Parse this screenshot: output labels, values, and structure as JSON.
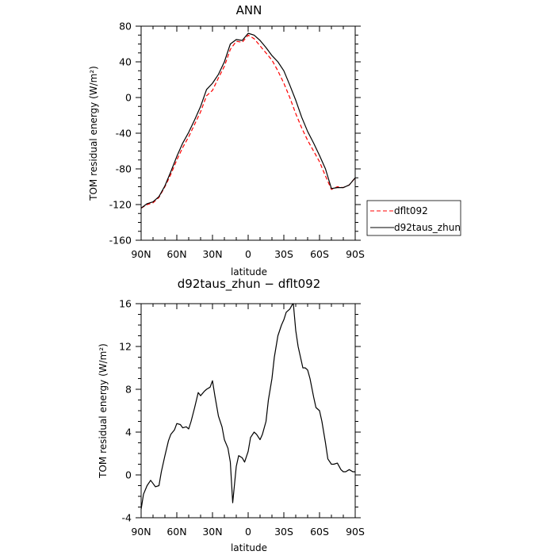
{
  "chart_data": [
    {
      "type": "line",
      "title": "ANN",
      "xlabel": "latitude",
      "ylabel": "TOM residual energy (W/m²)",
      "xlim": [
        90,
        -90
      ],
      "ylim": [
        -160,
        80
      ],
      "xticks": [
        90,
        60,
        30,
        0,
        -30,
        -60,
        -90
      ],
      "xtick_labels": [
        "90N",
        "60N",
        "30N",
        "0",
        "30S",
        "60S",
        "90S"
      ],
      "yticks": [
        -160,
        -120,
        -80,
        -40,
        0,
        40,
        80
      ],
      "ytick_labels": [
        "-160",
        "-120",
        "-80",
        "-40",
        "0",
        "40",
        "80"
      ],
      "legend_position": "right",
      "series": [
        {
          "name": "dflt092",
          "color": "#ff0000",
          "dash": "dashed",
          "x": [
            90,
            85,
            80,
            75,
            70,
            65,
            60,
            55,
            50,
            45,
            40,
            35,
            30,
            25,
            20,
            15,
            10,
            5,
            0,
            -5,
            -10,
            -15,
            -20,
            -25,
            -30,
            -35,
            -40,
            -45,
            -50,
            -55,
            -60,
            -65,
            -70,
            -75,
            -80,
            -85,
            -90
          ],
          "y": [
            -124,
            -120,
            -118,
            -112,
            -100,
            -86,
            -70,
            -56,
            -44,
            -30,
            -16,
            2,
            8,
            22,
            35,
            54,
            63,
            62,
            70,
            66,
            58,
            50,
            42,
            30,
            16,
            0,
            -18,
            -34,
            -48,
            -60,
            -72,
            -88,
            -103,
            -100,
            -101,
            -98,
            -90
          ]
        },
        {
          "name": "d92taus_zhun",
          "color": "#000000",
          "dash": "solid",
          "x": [
            90,
            85,
            80,
            75,
            70,
            65,
            60,
            55,
            50,
            45,
            40,
            35,
            30,
            25,
            20,
            15,
            10,
            5,
            0,
            -5,
            -10,
            -15,
            -20,
            -25,
            -30,
            -35,
            -40,
            -45,
            -50,
            -55,
            -60,
            -65,
            -70,
            -75,
            -80,
            -85,
            -90
          ],
          "y": [
            -124,
            -119,
            -117,
            -111,
            -99,
            -83,
            -66,
            -51,
            -39,
            -25,
            -10,
            9,
            16,
            26,
            40,
            60,
            65,
            64,
            72,
            70,
            64,
            56,
            47,
            40,
            30,
            14,
            -3,
            -22,
            -38,
            -51,
            -65,
            -80,
            -102,
            -101,
            -101,
            -98,
            -90
          ]
        }
      ]
    },
    {
      "type": "line",
      "title": "d92taus_zhun − dflt092",
      "xlabel": "latitude",
      "ylabel": "TOM residual energy (W/m²)",
      "xlim": [
        90,
        -90
      ],
      "ylim": [
        -4,
        16
      ],
      "xticks": [
        90,
        60,
        30,
        0,
        -30,
        -60,
        -90
      ],
      "xtick_labels": [
        "90N",
        "60N",
        "30N",
        "0",
        "30S",
        "60S",
        "90S"
      ],
      "yticks": [
        -4,
        0,
        4,
        8,
        12,
        16
      ],
      "ytick_labels": [
        "-4",
        "0",
        "4",
        "8",
        "12",
        "16"
      ],
      "series": [
        {
          "color": "#000000",
          "dash": "solid",
          "x": [
            90,
            88,
            85,
            82,
            80,
            78,
            75,
            73,
            70,
            67,
            65,
            62,
            60,
            57,
            55,
            52,
            50,
            48,
            45,
            42,
            40,
            37,
            35,
            32,
            30,
            28,
            25,
            22,
            20,
            17,
            15,
            13,
            10,
            8,
            5,
            3,
            0,
            -2,
            -5,
            -7,
            -10,
            -12,
            -15,
            -17,
            -20,
            -22,
            -25,
            -28,
            -30,
            -32,
            -35,
            -37,
            -38,
            -40,
            -42,
            -44,
            -46,
            -48,
            -50,
            -52,
            -55,
            -57,
            -60,
            -62,
            -65,
            -67,
            -70,
            -72,
            -75,
            -78,
            -80,
            -82,
            -85,
            -88,
            -90
          ],
          "y": [
            -3.2,
            -1.8,
            -1.0,
            -0.5,
            -0.8,
            -1.1,
            -1.0,
            0.3,
            1.8,
            3.2,
            3.8,
            4.2,
            4.8,
            4.7,
            4.4,
            4.5,
            4.3,
            5.0,
            6.3,
            7.7,
            7.4,
            7.8,
            8.0,
            8.2,
            8.8,
            7.4,
            5.5,
            4.5,
            3.3,
            2.5,
            1.2,
            -2.6,
            0.8,
            1.8,
            1.6,
            1.2,
            2.2,
            3.5,
            4.0,
            3.8,
            3.3,
            3.8,
            5.0,
            7.0,
            9.0,
            11.0,
            13.0,
            14.0,
            14.5,
            15.2,
            15.5,
            15.9,
            16.0,
            13.5,
            12.0,
            11.0,
            10.0,
            10.0,
            9.8,
            9.0,
            7.3,
            6.3,
            6.0,
            5.0,
            3.0,
            1.5,
            1.0,
            1.0,
            1.1,
            0.5,
            0.3,
            0.3,
            0.5,
            0.3,
            0.3
          ]
        }
      ]
    }
  ]
}
